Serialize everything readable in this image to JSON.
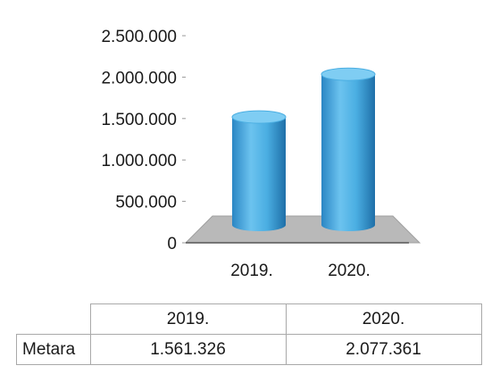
{
  "chart_data": {
    "type": "bar",
    "categories": [
      "2019.",
      "2020."
    ],
    "values": [
      1561326,
      2077361
    ],
    "ylim": [
      0,
      2500000
    ],
    "yticks": [
      0,
      500000,
      1000000,
      1500000,
      2000000,
      2500000
    ],
    "ytick_labels": [
      "0",
      "500.000",
      "1.000.000",
      "1.500.000",
      "2.000.000",
      "2.500.000"
    ],
    "title": "",
    "xlabel": "",
    "ylabel": "",
    "grid": false,
    "bar_color": "#3fa4dc",
    "floor_color": "#b9b9b9"
  },
  "table": {
    "headers": [
      "2019.",
      "2020."
    ],
    "row_label": "Metara",
    "values": [
      "1.561.326",
      "2.077.361"
    ]
  }
}
